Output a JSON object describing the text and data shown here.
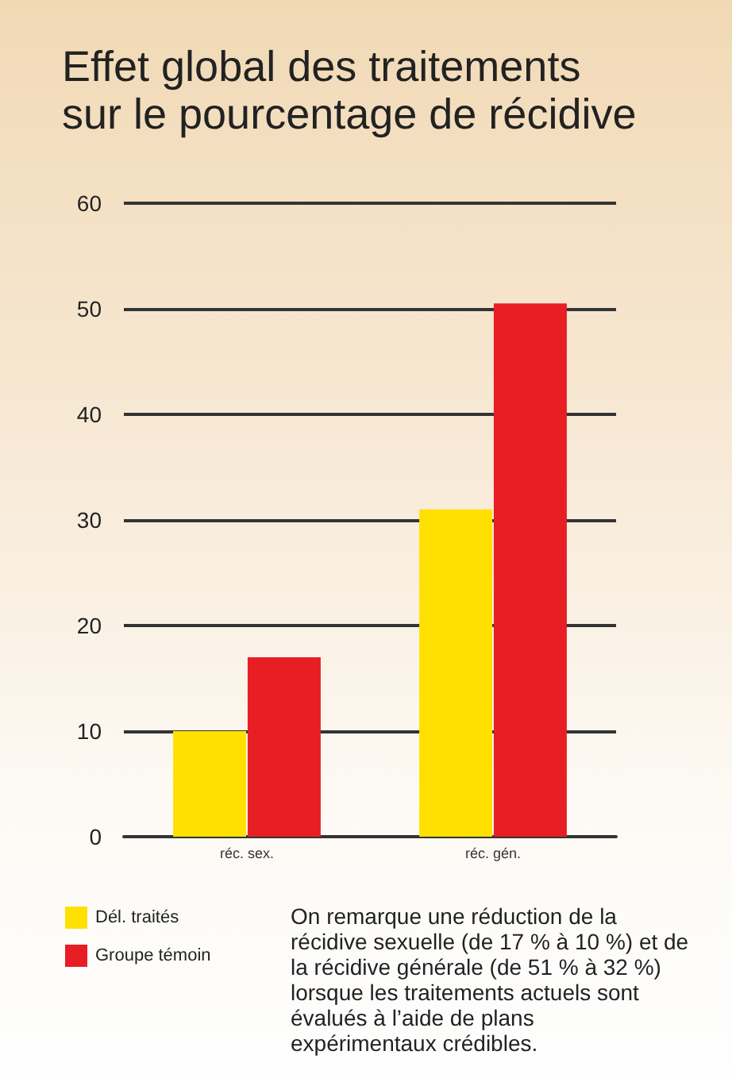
{
  "chart_data": {
    "type": "bar",
    "title": "Effet global des traitements\nsur le pourcentage de récidive",
    "categories": [
      "réc. sex.",
      "réc. gén."
    ],
    "series": [
      {
        "name": "Dél. traités",
        "color": "#ffe000",
        "values": [
          10,
          31
        ]
      },
      {
        "name": "Groupe témoin",
        "color": "#e81e25",
        "values": [
          17,
          50.5
        ]
      }
    ],
    "ylim": [
      0,
      60
    ],
    "yticks": [
      0,
      10,
      20,
      30,
      40,
      50,
      60
    ],
    "grid": "y",
    "legend": "bottom left",
    "annotations": [
      "On remarque une réduction de la récidive sexuelle (de 17 % à 10 %) et de la récidive générale (de 51 % à 32 %) lorsque les traitements actuels sont évalués à l’aide de plans expérimentaux crédibles."
    ]
  }
}
